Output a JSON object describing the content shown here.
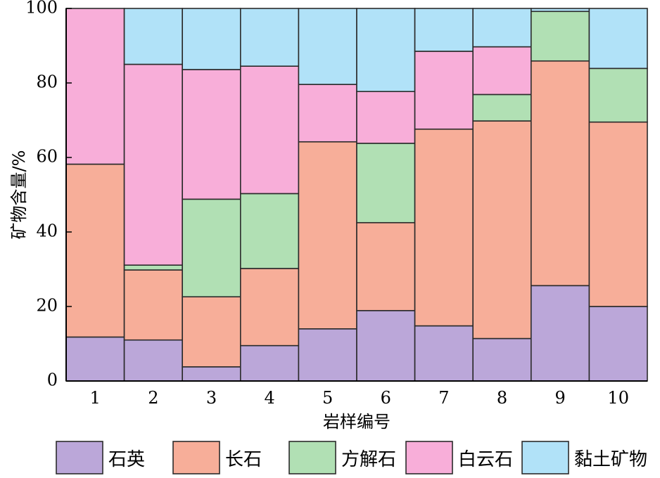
{
  "chart_data": {
    "type": "bar",
    "stacked": true,
    "categories": [
      "1",
      "2",
      "3",
      "4",
      "5",
      "6",
      "7",
      "8",
      "9",
      "10"
    ],
    "xlabel": "岩样编号",
    "ylabel": "矿物含量/%",
    "ylim": [
      0,
      100
    ],
    "yticks": [
      0,
      20,
      40,
      60,
      80,
      100
    ],
    "legend_position": "bottom",
    "series": [
      {
        "name": "石英",
        "color": "#bba7d9",
        "values": [
          11.8,
          11.0,
          3.8,
          9.5,
          14.0,
          18.9,
          14.8,
          11.4,
          25.6,
          20.0
        ]
      },
      {
        "name": "长石",
        "color": "#f7ae99",
        "values": [
          46.4,
          18.8,
          18.8,
          20.7,
          50.2,
          23.6,
          52.8,
          58.4,
          60.3,
          49.5
        ]
      },
      {
        "name": "方解石",
        "color": "#b1e0b4",
        "values": [
          0,
          1.3,
          26.2,
          20.1,
          0,
          21.3,
          0,
          7.1,
          13.3,
          14.4
        ]
      },
      {
        "name": "白云石",
        "color": "#f8aed9",
        "values": [
          41.8,
          53.9,
          34.8,
          34.2,
          15.4,
          13.9,
          20.9,
          12.8,
          0,
          0
        ]
      },
      {
        "name": "黏土矿物",
        "color": "#b1e2f8",
        "values": [
          0,
          15.0,
          16.4,
          15.5,
          20.4,
          22.3,
          11.5,
          10.3,
          0.8,
          16.1
        ]
      }
    ]
  }
}
